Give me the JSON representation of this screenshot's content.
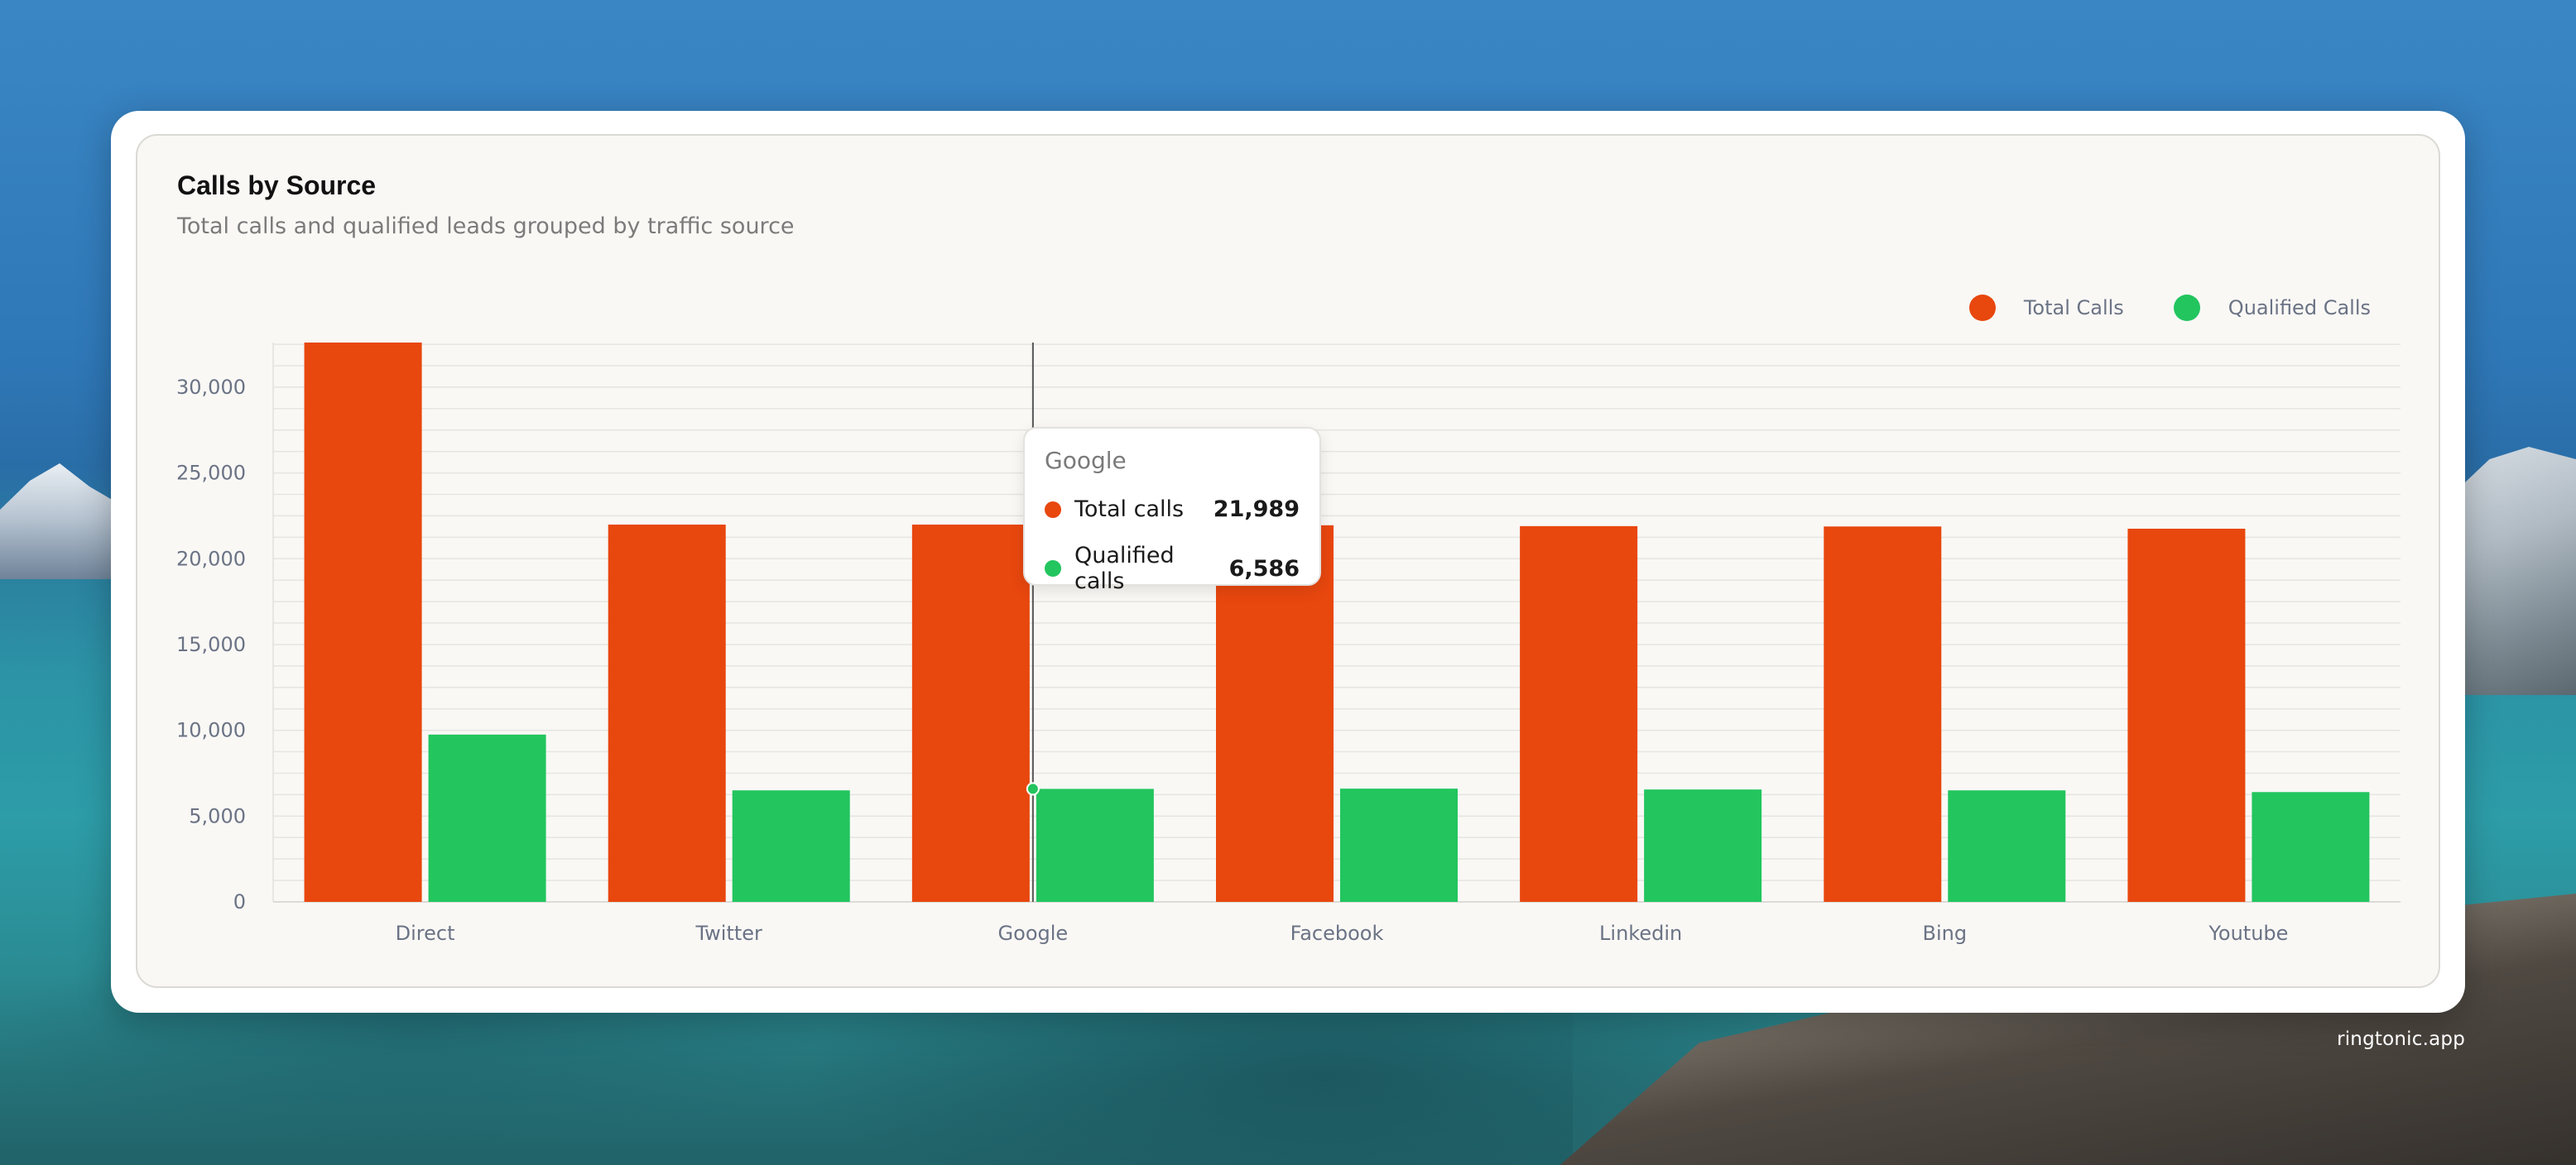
{
  "card": {
    "title": "Calls by Source",
    "subtitle": "Total calls and qualified leads grouped by traffic source"
  },
  "legend": [
    {
      "label": "Total Calls",
      "color": "#e8470e"
    },
    {
      "label": "Qualified Calls",
      "color": "#22c55e"
    }
  ],
  "tooltip": {
    "title": "Google",
    "rows": [
      {
        "label": "Total calls",
        "value": "21,989",
        "color": "#e8470e"
      },
      {
        "label": "Qualified calls",
        "value": "6,586",
        "color": "#22c55e"
      }
    ]
  },
  "watermark": "ringtonic.app",
  "chart_data": {
    "type": "bar",
    "categories": [
      "Direct",
      "Twitter",
      "Google",
      "Facebook",
      "Linkedin",
      "Bing",
      "Youtube"
    ],
    "series": [
      {
        "name": "Total Calls",
        "color": "#e8470e",
        "values": [
          32600,
          21989,
          21989,
          21950,
          21900,
          21880,
          21750
        ]
      },
      {
        "name": "Qualified Calls",
        "color": "#22c55e",
        "values": [
          9750,
          6500,
          6586,
          6600,
          6550,
          6500,
          6400
        ]
      }
    ],
    "yticks": [
      0,
      5000,
      10000,
      15000,
      20000,
      25000,
      30000
    ],
    "ytick_labels": [
      "0",
      "5,000",
      "10,000",
      "15,000",
      "20,000",
      "25,000",
      "30,000"
    ],
    "ylim": [
      0,
      32600
    ],
    "grid": true,
    "legend_position": "top-right",
    "highlighted_category": "Google",
    "title": "Calls by Source",
    "xlabel": "",
    "ylabel": ""
  }
}
